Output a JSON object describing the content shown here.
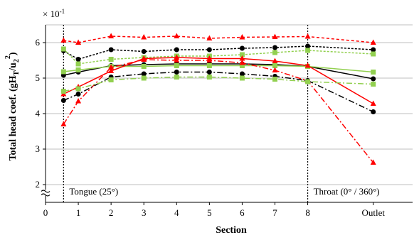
{
  "chart_data": {
    "type": "line",
    "multiplier_label": "× 10",
    "multiplier_exp": "-1",
    "xlabel": "Section",
    "ylabel": "Total head coef. (gH",
    "ylabel_parts": [
      "Total head coef. (gH",
      "T",
      "/u",
      "2",
      "2",
      ")"
    ],
    "x_tick_labels": [
      "0",
      "1",
      "2",
      "3",
      "4",
      "5",
      "6",
      "7",
      "8",
      "Outlet"
    ],
    "x_ticks": [
      0,
      1,
      2,
      3,
      4,
      5,
      6,
      7,
      8,
      10
    ],
    "y_ticks": [
      2,
      3,
      4,
      5,
      6
    ],
    "y_tick_labels": [
      "2",
      "3",
      "4",
      "5",
      "6"
    ],
    "ylim": [
      1.5,
      6.5
    ],
    "xlim": [
      0,
      11.2
    ],
    "axis_break": true,
    "grid": "horizontal",
    "annotations": [
      {
        "text": "Tongue (25°)",
        "x": 0.55
      },
      {
        "text": "Throat (0° / 360°)",
        "x": 8
      }
    ],
    "x": [
      0.55,
      1,
      2,
      3,
      4,
      5,
      6,
      7,
      8,
      10
    ],
    "series": [
      {
        "color": "#ff0000",
        "dash": "4,3",
        "marker": "triangle",
        "values": [
          6.06,
          6.0,
          6.18,
          6.15,
          6.18,
          6.12,
          6.15,
          6.16,
          6.17,
          6.0
        ]
      },
      {
        "color": "#000000",
        "dash": "3,2",
        "marker": "circle",
        "values": [
          5.77,
          5.53,
          5.8,
          5.75,
          5.8,
          5.8,
          5.84,
          5.86,
          5.9,
          5.8
        ]
      },
      {
        "color": "#92d050",
        "dash": "3,2",
        "marker": "square",
        "values": [
          5.82,
          5.4,
          5.53,
          5.58,
          5.62,
          5.62,
          5.66,
          5.72,
          5.78,
          5.68
        ]
      },
      {
        "color": "#000000",
        "dash": "",
        "marker": "circle",
        "values": [
          5.08,
          5.17,
          5.35,
          5.38,
          5.4,
          5.4,
          5.4,
          5.38,
          5.33,
          4.98
        ]
      },
      {
        "color": "#92d050",
        "dash": "",
        "marker": "square",
        "values": [
          5.18,
          5.23,
          5.33,
          5.33,
          5.35,
          5.35,
          5.35,
          5.35,
          5.33,
          5.17
        ]
      },
      {
        "color": "#ff0000",
        "dash": "",
        "marker": "triangle",
        "values": [
          4.55,
          4.75,
          5.2,
          5.55,
          5.58,
          5.55,
          5.55,
          5.48,
          5.35,
          4.28
        ]
      },
      {
        "color": "#ff0000",
        "dash": "8,3,2,3",
        "marker": "triangle",
        "values": [
          3.7,
          4.35,
          5.3,
          5.52,
          5.5,
          5.5,
          5.43,
          5.22,
          4.92,
          2.62
        ]
      },
      {
        "color": "#000000",
        "dash": "8,3,2,3",
        "marker": "circle",
        "values": [
          4.37,
          4.55,
          5.03,
          5.12,
          5.17,
          5.17,
          5.12,
          5.05,
          4.93,
          4.05
        ]
      },
      {
        "color": "#92d050",
        "dash": "8,3,2,3",
        "marker": "square",
        "values": [
          4.63,
          4.7,
          4.95,
          5.0,
          5.03,
          5.03,
          5.0,
          4.97,
          4.9,
          4.83
        ]
      }
    ]
  }
}
